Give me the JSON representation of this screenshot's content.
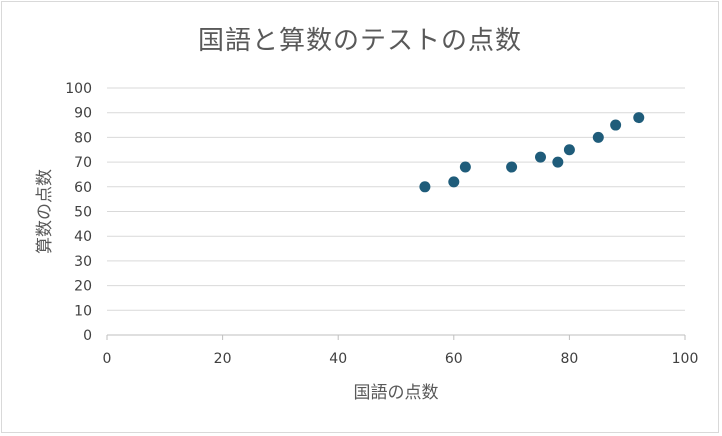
{
  "chart_data": {
    "type": "scatter",
    "title": "国語と算数のテストの点数",
    "xlabel": "国語の点数",
    "ylabel": "算数の点数",
    "xlim": [
      0,
      100
    ],
    "ylim": [
      0,
      100
    ],
    "x_ticks": [
      0,
      20,
      40,
      60,
      80,
      100
    ],
    "y_ticks": [
      0,
      10,
      20,
      30,
      40,
      50,
      60,
      70,
      80,
      90,
      100
    ],
    "grid": "horizontal",
    "legend": "none",
    "series": [
      {
        "color": "#1f5c7a",
        "points": [
          {
            "x": 55,
            "y": 60
          },
          {
            "x": 60,
            "y": 62
          },
          {
            "x": 62,
            "y": 68
          },
          {
            "x": 70,
            "y": 68
          },
          {
            "x": 75,
            "y": 72
          },
          {
            "x": 78,
            "y": 70
          },
          {
            "x": 80,
            "y": 75
          },
          {
            "x": 85,
            "y": 80
          },
          {
            "x": 88,
            "y": 85
          },
          {
            "x": 92,
            "y": 88
          }
        ]
      }
    ]
  }
}
